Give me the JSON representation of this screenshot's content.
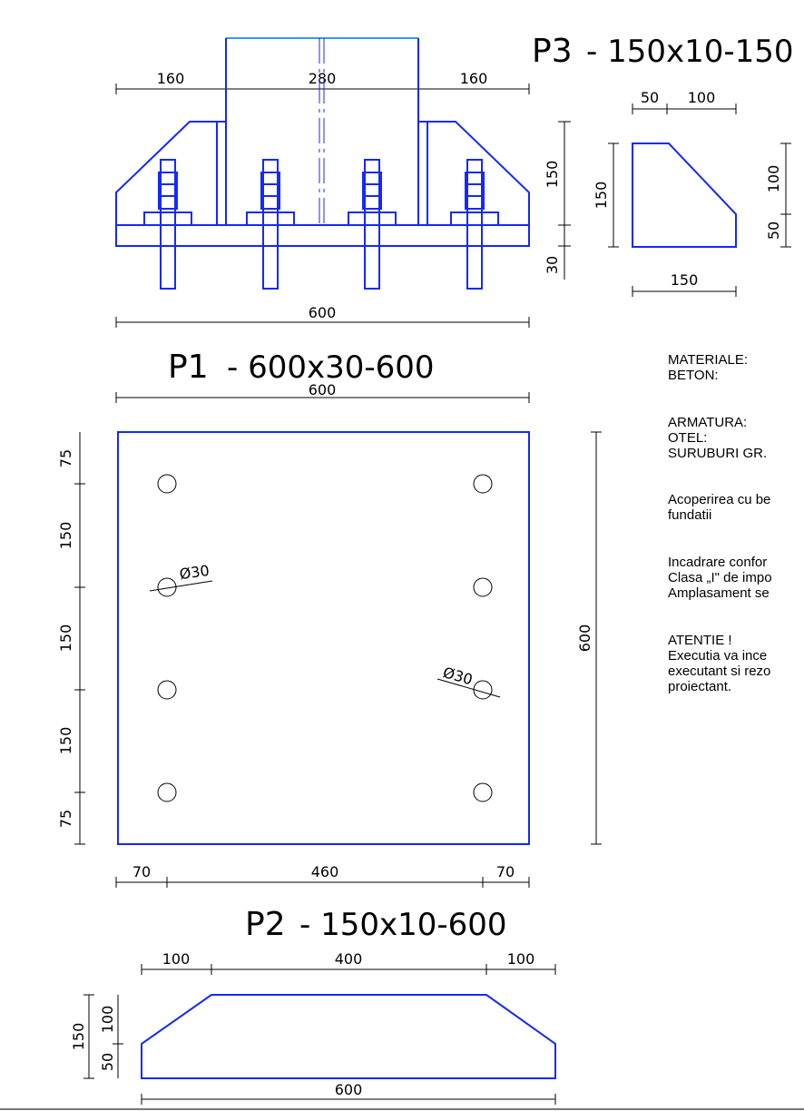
{
  "elevation": {
    "dims": {
      "left": "160",
      "middle": "280",
      "right": "160",
      "total": "600",
      "h150": "150",
      "h30": "30"
    }
  },
  "p3": {
    "code": "P3",
    "spec": "- 150x10-150",
    "dims": {
      "top_a": "50",
      "top_b": "100",
      "left": "150",
      "right_a": "100",
      "right_b": "50",
      "bottom": "150"
    }
  },
  "p1": {
    "code": "P1",
    "spec": "- 600x30-600",
    "dims": {
      "top": "600",
      "right": "600",
      "left": [
        "75",
        "150",
        "150",
        "150",
        "75"
      ],
      "bottom": [
        "70",
        "460",
        "70"
      ],
      "hole_a": "Ø30",
      "hole_b": "Ø30"
    }
  },
  "p2": {
    "code": "P2",
    "spec": "- 150x10-600",
    "dims": {
      "top": [
        "100",
        "400",
        "100"
      ],
      "bottom": "600",
      "left_total": "150",
      "left_a": "100",
      "left_b": "50"
    }
  },
  "notes": {
    "materiale": "MATERIALE:",
    "beton": "BETON:",
    "armatura": "ARMATURA:",
    "otel": "OTEL:",
    "suruburi": "SURUBURI GR.",
    "acoperire_1": "Acoperirea cu be",
    "acoperire_2": "fundatii",
    "incadrare_1": "Incadrare confor",
    "incadrare_2": "Clasa „I\" de impo",
    "incadrare_3": "Amplasament se",
    "atentie": "ATENTIE !",
    "executie_1": "Executia va ince",
    "executie_2": "executant si rezo",
    "executie_3": "proiectant."
  }
}
